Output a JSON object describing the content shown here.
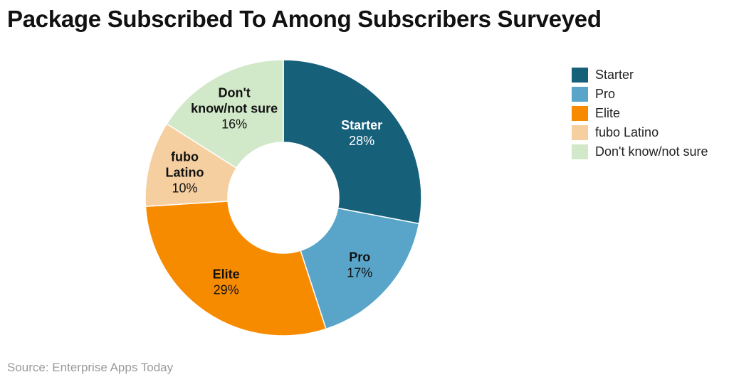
{
  "title": "Package Subscribed To Among Subscribers Surveyed",
  "source": "Source: Enterprise Apps Today",
  "chart_data": {
    "type": "pie",
    "donut": true,
    "title": "Package Subscribed To Among Subscribers Surveyed",
    "legend_position": "right",
    "categories": [
      "Starter",
      "Pro",
      "Elite",
      "fubo Latino",
      "Don't know/not sure"
    ],
    "values": [
      28,
      17,
      29,
      10,
      16
    ],
    "value_labels": [
      "28%",
      "17%",
      "29%",
      "10%",
      "16%"
    ],
    "slice_labels": [
      [
        "Starter"
      ],
      [
        "Pro"
      ],
      [
        "Elite"
      ],
      [
        "fubo",
        "Latino"
      ],
      [
        "Don't",
        "know/not sure"
      ]
    ],
    "colors": [
      "#16607a",
      "#59a5c9",
      "#f78b00",
      "#f5cfa0",
      "#d1e8c9"
    ],
    "label_colors": [
      "#ffffff",
      "#111111",
      "#111111",
      "#111111",
      "#111111"
    ]
  }
}
